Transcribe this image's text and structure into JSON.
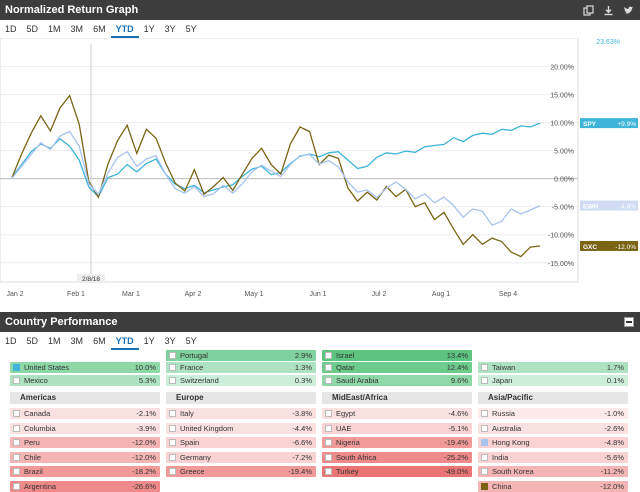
{
  "header1": {
    "title": "Normalized Return Graph"
  },
  "header2": {
    "title": "Country Performance"
  },
  "tabs": [
    "1D",
    "5D",
    "1M",
    "3M",
    "6M",
    "YTD",
    "1Y",
    "3Y",
    "5Y"
  ],
  "active_tab": "YTD",
  "legend": [
    {
      "name": "United States",
      "color": "#3fb4d9"
    },
    {
      "name": "China",
      "color": "#7a6414"
    },
    {
      "name": "Hong Kong",
      "color": "#a8c4ee"
    }
  ],
  "chart_data": {
    "type": "line",
    "x_ticks": [
      "Jan 2",
      "Feb 1",
      "Mar 1",
      "Apr 2",
      "May 1",
      "Jun 1",
      "Jul 2",
      "Aug 1",
      "Sep 4"
    ],
    "y_ticks": [
      "20.00%",
      "15.00%",
      "10.00%",
      "5.00%",
      "0.00%",
      "-5.00%",
      "-10.00%",
      "-15.00%"
    ],
    "ylim": [
      -17,
      24
    ],
    "top_label": "23.63%",
    "cursor_label": "2/8/18",
    "end_labels": [
      {
        "ticker": "SPY",
        "value": "+9.9%",
        "y": 9.9,
        "color": "#3fb4d9",
        "text_color": "#ffffff"
      },
      {
        "ticker": "EWH",
        "value": "-4.8%",
        "y": -4.8,
        "color": "#cfdcf2",
        "text_color": "#ffffff"
      },
      {
        "ticker": "GXC",
        "value": "-12.0%",
        "y": -12.0,
        "color": "#7a6414",
        "text_color": "#ffffff"
      }
    ],
    "series": [
      {
        "name": "United States",
        "color": "#3fb4d9",
        "values": [
          0.3,
          2.5,
          4.8,
          6.2,
          5.4,
          7.1,
          5.8,
          3.3,
          -1.5,
          -3.2,
          0.2,
          0.8,
          2.5,
          1.2,
          2.7,
          3.5,
          0.8,
          -1.0,
          -1.8,
          -1.2,
          -2.5,
          -2.0,
          -1.5,
          -1.1,
          0.4,
          1.7,
          2.2,
          0.7,
          1.1,
          2.7,
          4.0,
          4.4,
          3.9,
          4.6,
          4.8,
          3.3,
          1.8,
          2.2,
          3.8,
          4.6,
          4.4,
          4.9,
          4.7,
          5.7,
          5.9,
          6.1,
          7.3,
          6.6,
          7.7,
          8.1,
          7.9,
          8.8,
          8.6,
          9.4,
          9.2,
          9.9
        ]
      },
      {
        "name": "China",
        "color": "#7a6414",
        "values": [
          0.2,
          4.4,
          8.1,
          11.2,
          8.5,
          12.6,
          14.8,
          9.7,
          -0.5,
          -3.3,
          2.6,
          6.8,
          9.5,
          4.5,
          8.8,
          7.2,
          2.8,
          -0.8,
          -2.2,
          1.6,
          -2.8,
          -1.4,
          0.2,
          -2.1,
          0.8,
          3.6,
          5.4,
          2.5,
          0.8,
          6.2,
          9.2,
          8.4,
          2.5,
          4.2,
          3.6,
          -1.7,
          -4.0,
          -2.4,
          -3.8,
          -1.4,
          -3.2,
          -1.9,
          -5.0,
          -4.3,
          -7.3,
          -6.0,
          -9.0,
          -11.7,
          -10.0,
          -11.7,
          -10.6,
          -11.2,
          -13.1,
          -13.9,
          -12.2,
          -12.0
        ]
      },
      {
        "name": "Hong Kong",
        "color": "#a8c4ee",
        "values": [
          0.1,
          2.2,
          4.3,
          6.4,
          5.2,
          7.6,
          8.4,
          5.8,
          -0.9,
          -2.8,
          1.0,
          3.8,
          4.8,
          2.2,
          3.5,
          4.1,
          0.8,
          -1.8,
          -2.6,
          -1.4,
          -3.2,
          -2.7,
          -1.2,
          -2.6,
          -0.9,
          1.2,
          2.4,
          1.3,
          0.4,
          2.5,
          4.1,
          4.3,
          2.6,
          3.2,
          2.1,
          -0.6,
          -2.4,
          -2.0,
          -3.4,
          -1.7,
          -0.6,
          -1.9,
          -3.6,
          -2.7,
          -4.3,
          -3.3,
          -4.8,
          -6.9,
          -5.4,
          -5.8,
          -8.3,
          -7.6,
          -5.4,
          -6.3,
          -5.6,
          -4.8
        ]
      }
    ]
  },
  "regions": [
    {
      "name": "Americas"
    },
    {
      "name": "Europe"
    },
    {
      "name": "MidEast/Africa"
    },
    {
      "name": "Asia/Pacific"
    }
  ],
  "countries": {
    "top": [
      [
        null,
        {
          "name": "Portugal",
          "value": "2.9%",
          "color": "#7fd19e"
        },
        {
          "name": "Israel",
          "value": "13.4%",
          "color": "#5cc47f"
        },
        null
      ],
      [
        {
          "name": "United States",
          "value": "10.0%",
          "color": "#8ed8a8",
          "checked": true
        },
        {
          "name": "France",
          "value": "1.3%",
          "color": "#aee3c1"
        },
        {
          "name": "Qatar",
          "value": "12.4%",
          "color": "#6dcb8c"
        },
        {
          "name": "Taiwan",
          "value": "1.7%",
          "color": "#aee3c1"
        }
      ],
      [
        {
          "name": "Mexico",
          "value": "5.3%",
          "color": "#aee3c1"
        },
        {
          "name": "Switzerland",
          "value": "0.3%",
          "color": "#cdeed8"
        },
        {
          "name": "Saudi Arabia",
          "value": "9.6%",
          "color": "#8ed8a8"
        },
        {
          "name": "Japan",
          "value": "0.1%",
          "color": "#cdeed8"
        }
      ]
    ],
    "bottom": [
      [
        {
          "name": "Canada",
          "value": "-2.1%",
          "color": "#fbe0e0"
        },
        {
          "name": "Italy",
          "value": "-3.8%",
          "color": "#fbe0e0"
        },
        {
          "name": "Egypt",
          "value": "-4.6%",
          "color": "#fbe0e0"
        },
        {
          "name": "Russia",
          "value": "-1.0%",
          "color": "#fdeaea"
        }
      ],
      [
        {
          "name": "Columbia",
          "value": "-3.9%",
          "color": "#fbe0e0"
        },
        {
          "name": "United Kingdom",
          "value": "-4.4%",
          "color": "#fbe0e0"
        },
        {
          "name": "UAE",
          "value": "-5.1%",
          "color": "#f9d2d2"
        },
        {
          "name": "Australia",
          "value": "-2.6%",
          "color": "#fbe0e0"
        }
      ],
      [
        {
          "name": "Peru",
          "value": "-12.0%",
          "color": "#f5b5b5"
        },
        {
          "name": "Spain",
          "value": "-6.6%",
          "color": "#f9d2d2"
        },
        {
          "name": "Nigeria",
          "value": "-19.4%",
          "color": "#f29a9a"
        },
        {
          "name": "Hong Kong",
          "value": "-4.8%",
          "color": "#f9d2d2",
          "checked": true
        }
      ],
      [
        {
          "name": "Chile",
          "value": "-12.0%",
          "color": "#f5b5b5"
        },
        {
          "name": "Germany",
          "value": "-7.2%",
          "color": "#f9d2d2"
        },
        {
          "name": "South Africa",
          "value": "-25.2%",
          "color": "#ef8a8a"
        },
        {
          "name": "India",
          "value": "-5.6%",
          "color": "#f9d2d2"
        }
      ],
      [
        {
          "name": "Brazil",
          "value": "-18.2%",
          "color": "#f29a9a"
        },
        {
          "name": "Greece",
          "value": "-19.4%",
          "color": "#f29a9a"
        },
        {
          "name": "Turkey",
          "value": "-49.0%",
          "color": "#ea7373"
        },
        {
          "name": "South Korea",
          "value": "-11.2%",
          "color": "#f5b5b5"
        }
      ],
      [
        {
          "name": "Argentina",
          "value": "-26.6%",
          "color": "#ef8a8a"
        },
        null,
        null,
        {
          "name": "China",
          "value": "-12.0%",
          "color": "#f5b5b5",
          "checked": true
        }
      ]
    ]
  }
}
